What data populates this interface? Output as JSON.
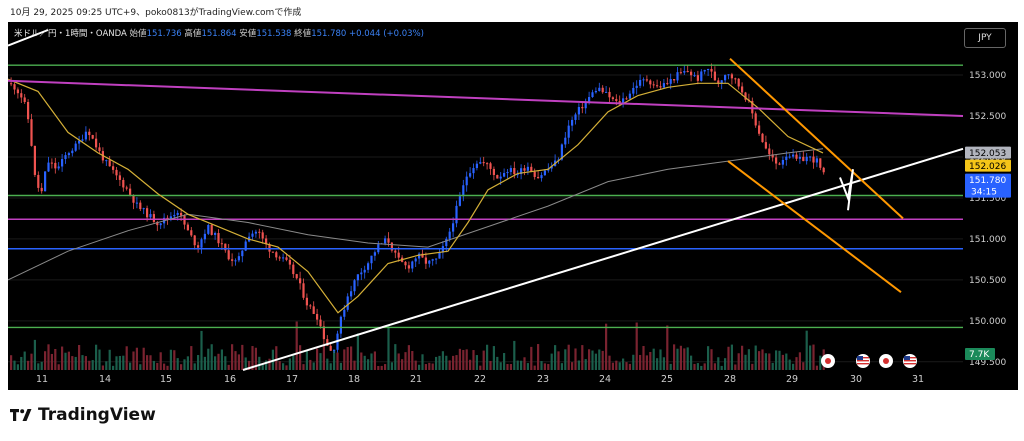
{
  "header": {
    "caption": "10月 29, 2025 09:25 UTC+9、poko0813がTradingView.comで作成",
    "legend": {
      "symbol": "米ドル／円・1時間・OANDA",
      "open_label": "始値",
      "open": "151.736",
      "high_label": "高値",
      "high": "151.864",
      "low_label": "安値",
      "low": "151.538",
      "close_label": "終値",
      "close": "151.780",
      "change": "+0.044 (+0.03%)"
    },
    "currency_button": "JPY"
  },
  "chart_data": {
    "type": "candlestick",
    "x_tick_labels": [
      "11",
      "14",
      "15",
      "16",
      "17",
      "18",
      "21",
      "22",
      "23",
      "24",
      "25",
      "28",
      "29",
      "30",
      "31"
    ],
    "y_tick_labels": [
      "153.000",
      "152.500",
      "152.000",
      "151.500",
      "151.000",
      "150.500",
      "150.000",
      "149.500"
    ],
    "y_ticks": [
      153.0,
      152.5,
      152.0,
      151.5,
      151.0,
      150.5,
      150.0,
      149.5
    ],
    "ylim": [
      149.4,
      153.55
    ],
    "price_labels": [
      {
        "value": 152.053,
        "text": "152.053",
        "color": "#b2b5be",
        "text_color": "#000000"
      },
      {
        "value": 152.026,
        "text": "152.026",
        "color": "#f5c518",
        "text_color": "#000000"
      },
      {
        "value": 151.78,
        "text": "151.780",
        "sub": "34:15",
        "color": "#2962ff",
        "text_color": "#ffffff"
      }
    ],
    "volume_label": "7.7K",
    "horizontal_lines": [
      {
        "value": 153.12,
        "color": "#4caf50"
      },
      {
        "value": 151.53,
        "color": "#4caf50"
      },
      {
        "value": 151.24,
        "color": "#c040c0"
      },
      {
        "value": 150.88,
        "color": "#2962ff"
      },
      {
        "value": 149.92,
        "color": "#4caf50"
      }
    ],
    "close_path": [
      [
        0,
        152.9
      ],
      [
        8,
        152.85
      ],
      [
        16,
        152.7
      ],
      [
        22,
        152.4
      ],
      [
        28,
        151.7
      ],
      [
        34,
        151.55
      ],
      [
        40,
        151.95
      ],
      [
        50,
        151.85
      ],
      [
        60,
        152.05
      ],
      [
        70,
        152.15
      ],
      [
        80,
        152.35
      ],
      [
        90,
        152.1
      ],
      [
        100,
        151.9
      ],
      [
        110,
        151.75
      ],
      [
        120,
        151.6
      ],
      [
        130,
        151.4
      ],
      [
        140,
        151.3
      ],
      [
        150,
        151.2
      ],
      [
        160,
        151.25
      ],
      [
        170,
        151.35
      ],
      [
        180,
        151.1
      ],
      [
        190,
        150.9
      ],
      [
        200,
        151.15
      ],
      [
        210,
        151.0
      ],
      [
        220,
        150.8
      ],
      [
        230,
        150.7
      ],
      [
        240,
        151.05
      ],
      [
        250,
        151.1
      ],
      [
        260,
        150.9
      ],
      [
        270,
        150.8
      ],
      [
        280,
        150.7
      ],
      [
        290,
        150.5
      ],
      [
        300,
        150.2
      ],
      [
        310,
        150.05
      ],
      [
        318,
        149.75
      ],
      [
        325,
        149.6
      ],
      [
        332,
        149.95
      ],
      [
        340,
        150.3
      ],
      [
        350,
        150.55
      ],
      [
        360,
        150.7
      ],
      [
        370,
        150.9
      ],
      [
        380,
        151.0
      ],
      [
        390,
        150.75
      ],
      [
        400,
        150.65
      ],
      [
        410,
        150.8
      ],
      [
        420,
        150.7
      ],
      [
        430,
        150.75
      ],
      [
        440,
        151.0
      ],
      [
        450,
        151.4
      ],
      [
        460,
        151.8
      ],
      [
        470,
        151.95
      ],
      [
        480,
        151.9
      ],
      [
        490,
        151.75
      ],
      [
        500,
        151.85
      ],
      [
        510,
        151.8
      ],
      [
        520,
        151.9
      ],
      [
        530,
        151.75
      ],
      [
        540,
        151.85
      ],
      [
        550,
        151.95
      ],
      [
        560,
        152.35
      ],
      [
        570,
        152.55
      ],
      [
        580,
        152.7
      ],
      [
        590,
        152.85
      ],
      [
        600,
        152.75
      ],
      [
        610,
        152.65
      ],
      [
        620,
        152.75
      ],
      [
        630,
        152.9
      ],
      [
        640,
        152.95
      ],
      [
        650,
        152.85
      ],
      [
        660,
        152.9
      ],
      [
        670,
        153.0
      ],
      [
        680,
        153.05
      ],
      [
        690,
        152.95
      ],
      [
        700,
        153.1
      ],
      [
        710,
        152.9
      ],
      [
        720,
        153.05
      ],
      [
        730,
        152.9
      ],
      [
        740,
        152.7
      ],
      [
        750,
        152.35
      ],
      [
        760,
        152.05
      ],
      [
        770,
        151.9
      ],
      [
        780,
        152.05
      ],
      [
        790,
        151.95
      ],
      [
        800,
        152.0
      ],
      [
        810,
        151.95
      ],
      [
        815,
        151.78
      ]
    ],
    "ma_fast": [
      [
        0,
        152.95
      ],
      [
        30,
        152.8
      ],
      [
        60,
        152.3
      ],
      [
        90,
        152.05
      ],
      [
        120,
        151.85
      ],
      [
        150,
        151.55
      ],
      [
        180,
        151.3
      ],
      [
        210,
        151.15
      ],
      [
        240,
        151.0
      ],
      [
        270,
        150.9
      ],
      [
        300,
        150.6
      ],
      [
        330,
        150.1
      ],
      [
        350,
        150.3
      ],
      [
        380,
        150.7
      ],
      [
        410,
        150.8
      ],
      [
        440,
        150.85
      ],
      [
        460,
        151.2
      ],
      [
        480,
        151.6
      ],
      [
        510,
        151.8
      ],
      [
        540,
        151.85
      ],
      [
        570,
        152.15
      ],
      [
        600,
        152.55
      ],
      [
        630,
        152.75
      ],
      [
        660,
        152.85
      ],
      [
        690,
        152.9
      ],
      [
        720,
        152.9
      ],
      [
        750,
        152.6
      ],
      [
        780,
        152.25
      ],
      [
        815,
        152.05
      ]
    ],
    "ma_slow": [
      [
        0,
        150.5
      ],
      [
        60,
        150.85
      ],
      [
        120,
        151.1
      ],
      [
        180,
        151.3
      ],
      [
        240,
        151.2
      ],
      [
        300,
        151.05
      ],
      [
        360,
        150.95
      ],
      [
        420,
        150.9
      ],
      [
        480,
        151.15
      ],
      [
        540,
        151.4
      ],
      [
        600,
        151.7
      ],
      [
        660,
        151.85
      ],
      [
        720,
        151.95
      ],
      [
        780,
        152.05
      ],
      [
        815,
        152.1
      ]
    ],
    "trend_lines": [
      {
        "points": [
          [
            0,
            153.36
          ],
          [
            40,
            153.55
          ]
        ],
        "color": "#ffffff"
      },
      {
        "points": [
          [
            0,
            152.93
          ],
          [
            955,
            152.5
          ]
        ],
        "color": "#c040c0"
      },
      {
        "points": [
          [
            235,
            149.4
          ],
          [
            955,
            152.1
          ]
        ],
        "color": "#ffffff"
      },
      {
        "points": [
          [
            722,
            153.2
          ],
          [
            895,
            151.25
          ]
        ],
        "color": "#ff9800"
      },
      {
        "points": [
          [
            720,
            151.95
          ],
          [
            893,
            150.35
          ]
        ],
        "color": "#ff9800"
      },
      {
        "points": [
          [
            832,
            151.75
          ],
          [
            840,
            151.5
          ],
          [
            845,
            151.85
          ],
          [
            840,
            151.35
          ]
        ],
        "color": "#ffffff"
      }
    ],
    "event_icons": [
      {
        "x": 820,
        "kind": "jp"
      },
      {
        "x": 855,
        "kind": "us"
      },
      {
        "x": 878,
        "kind": "jp"
      },
      {
        "x": 902,
        "kind": "us"
      }
    ]
  }
}
